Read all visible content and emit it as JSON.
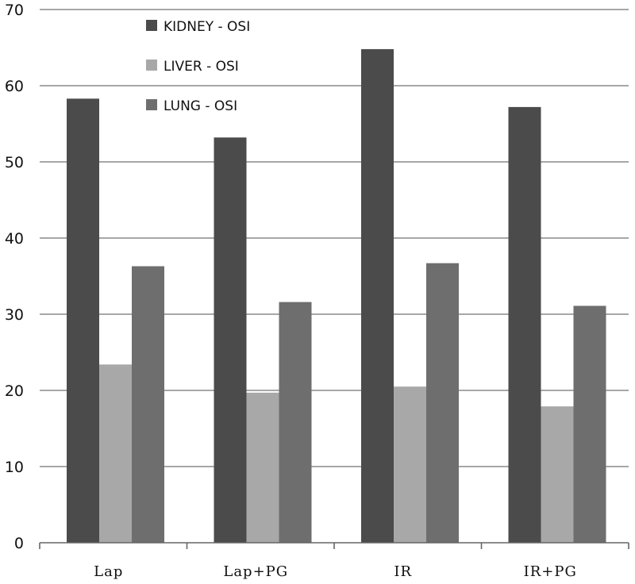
{
  "chart_data": {
    "type": "bar",
    "categories": [
      "Lap",
      "Lap+PG",
      "IR",
      "IR+PG"
    ],
    "series": [
      {
        "name": "KIDNEY - OSI",
        "values": [
          58.3,
          53.2,
          64.8,
          57.2
        ],
        "color": "#4b4b4b"
      },
      {
        "name": "LIVER - OSI",
        "values": [
          23.4,
          19.7,
          20.5,
          17.9
        ],
        "color": "#a8a8a8"
      },
      {
        "name": "LUNG - OSI",
        "values": [
          36.3,
          31.6,
          36.7,
          31.1
        ],
        "color": "#6e6e6e"
      }
    ],
    "title": "",
    "xlabel": "",
    "ylabel": "",
    "ylim": [
      0,
      70
    ],
    "yticks": [
      "0",
      "10",
      "20",
      "30",
      "40",
      "50",
      "60",
      "70"
    ],
    "grid": true,
    "legend_position": "top-center-left"
  }
}
